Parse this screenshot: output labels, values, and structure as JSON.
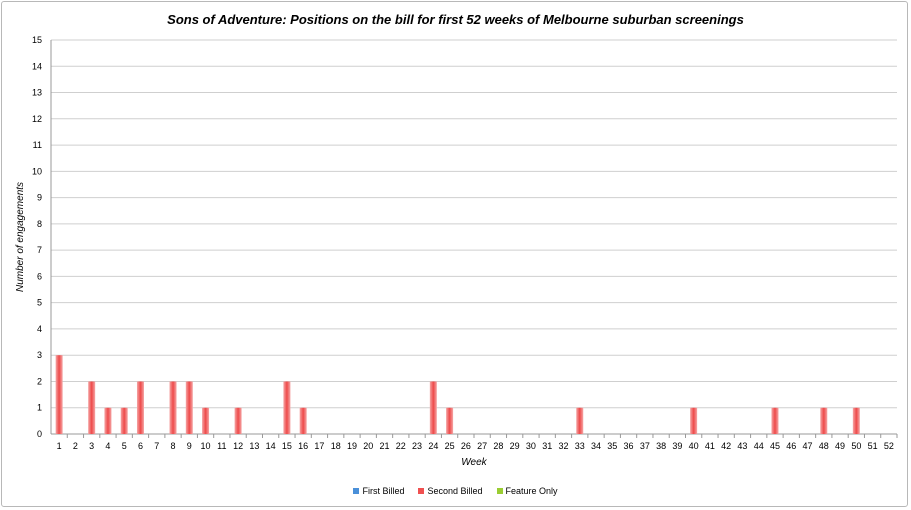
{
  "chart_data": {
    "type": "bar",
    "title": "Sons of Adventure: Positions on the bill for first 52 weeks of Melbourne suburban screenings",
    "xlabel": "Week",
    "ylabel": "Number of engagements",
    "ylim": [
      0,
      15
    ],
    "yticks": [
      "0",
      "1",
      "2",
      "3",
      "4",
      "5",
      "6",
      "7",
      "8",
      "9",
      "10",
      "11",
      "12",
      "13",
      "14",
      "15"
    ],
    "grid": true,
    "stacked": true,
    "legend_position": "bottom",
    "categories": [
      "1",
      "2",
      "3",
      "4",
      "5",
      "6",
      "7",
      "8",
      "9",
      "10",
      "11",
      "12",
      "13",
      "14",
      "15",
      "16",
      "17",
      "18",
      "19",
      "20",
      "21",
      "22",
      "23",
      "24",
      "25",
      "26",
      "27",
      "28",
      "29",
      "30",
      "31",
      "32",
      "33",
      "34",
      "35",
      "36",
      "37",
      "38",
      "39",
      "40",
      "41",
      "42",
      "43",
      "44",
      "45",
      "46",
      "47",
      "48",
      "49",
      "50",
      "51",
      "52"
    ],
    "series": [
      {
        "name": "First Billed",
        "color": "#4a90d9",
        "values": [
          0,
          0,
          0,
          0,
          0,
          0,
          0,
          0,
          0,
          0,
          0,
          0,
          0,
          0,
          0,
          0,
          0,
          0,
          0,
          0,
          0,
          0,
          0,
          0,
          0,
          0,
          0,
          0,
          0,
          0,
          0,
          0,
          0,
          0,
          0,
          0,
          0,
          0,
          0,
          0,
          0,
          0,
          0,
          0,
          0,
          0,
          0,
          0,
          0,
          0,
          0,
          0
        ]
      },
      {
        "name": "Second Billed",
        "color": "#f05050",
        "values": [
          3,
          0,
          2,
          1,
          1,
          2,
          0,
          2,
          2,
          1,
          0,
          1,
          0,
          0,
          2,
          1,
          0,
          0,
          0,
          0,
          0,
          0,
          0,
          2,
          1,
          0,
          0,
          0,
          0,
          0,
          0,
          0,
          1,
          0,
          0,
          0,
          0,
          0,
          0,
          1,
          0,
          0,
          0,
          0,
          1,
          0,
          0,
          1,
          0,
          1,
          0,
          0
        ]
      },
      {
        "name": "Feature Only",
        "color": "#9acd32",
        "values": [
          0,
          0,
          0,
          0,
          0,
          0,
          0,
          0,
          0,
          0,
          0,
          0,
          0,
          0,
          0,
          0,
          0,
          0,
          0,
          0,
          0,
          0,
          0,
          0,
          0,
          0,
          0,
          0,
          0,
          0,
          0,
          0,
          0,
          0,
          0,
          0,
          0,
          0,
          0,
          0,
          0,
          0,
          0,
          0,
          0,
          0,
          0,
          0,
          0,
          0,
          0,
          0
        ]
      }
    ]
  }
}
